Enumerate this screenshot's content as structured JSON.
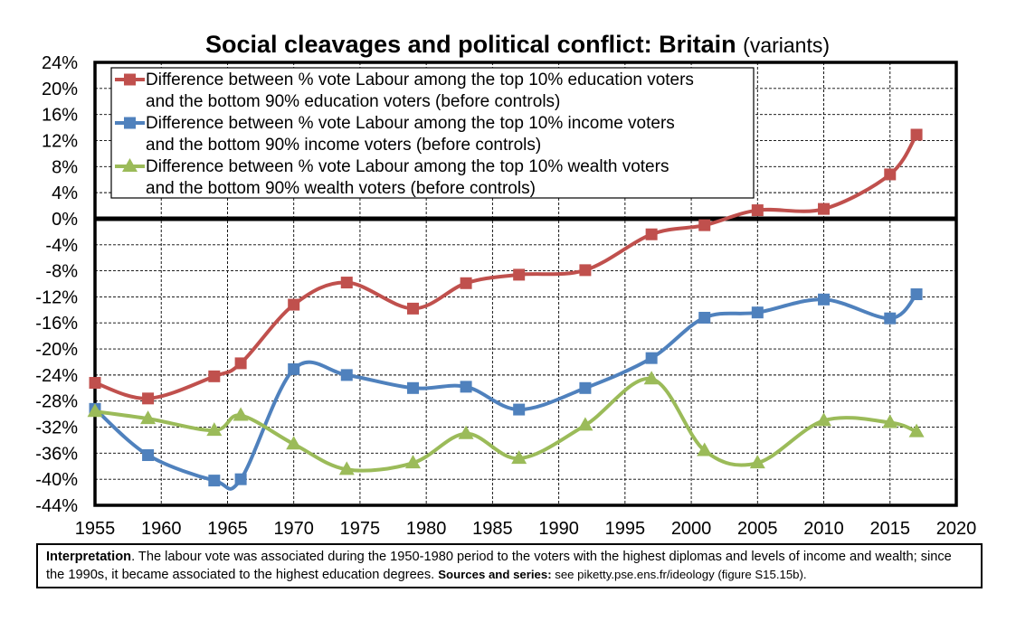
{
  "chart_data": {
    "type": "line",
    "title": "Social cleavages and political conflict: Britain",
    "subtitle": "(variants)",
    "x_ticks": [
      "1955",
      "1960",
      "1965",
      "1970",
      "1975",
      "1980",
      "1985",
      "1990",
      "1995",
      "2000",
      "2005",
      "2010",
      "2015",
      "2020"
    ],
    "y_ticks": [
      "24%",
      "20%",
      "16%",
      "12%",
      "8%",
      "4%",
      "0%",
      "-4%",
      "-8%",
      "-12%",
      "-16%",
      "-20%",
      "-24%",
      "-28%",
      "-32%",
      "-36%",
      "-40%",
      "-44%"
    ],
    "xlim": [
      1955,
      2020
    ],
    "ylim": [
      -44,
      24
    ],
    "grid": true,
    "legend_position": "top-left",
    "series": [
      {
        "name_line1": "Difference between % vote Labour among the top 10% education voters",
        "name_line2": "and the bottom 90% education voters (before controls)",
        "color": "#c0504d",
        "marker": "square",
        "x": [
          1955,
          1959,
          1964,
          1966,
          1970,
          1974,
          1979,
          1983,
          1987,
          1992,
          1997,
          2001,
          2005,
          2010,
          2015,
          2017
        ],
        "y": [
          -25.2,
          -27.6,
          -24.2,
          -22.2,
          -13.2,
          -9.8,
          -13.8,
          -9.9,
          -8.6,
          -7.9,
          -2.4,
          -1.0,
          1.3,
          1.5,
          6.8,
          12.9
        ]
      },
      {
        "name_line1": "Difference between % vote Labour among the top 10% income voters",
        "name_line2": "and the bottom 90% income voters (before controls)",
        "color": "#4f81bd",
        "marker": "square",
        "x": [
          1955,
          1959,
          1964,
          1966,
          1970,
          1974,
          1979,
          1983,
          1987,
          1992,
          1997,
          2001,
          2005,
          2010,
          2015,
          2017
        ],
        "y": [
          -29.2,
          -36.3,
          -40.2,
          -40.0,
          -23.1,
          -24.0,
          -26.0,
          -25.8,
          -29.3,
          -26.0,
          -21.4,
          -15.2,
          -14.4,
          -12.4,
          -15.3,
          -11.6
        ]
      },
      {
        "name_line1": "Difference between % vote Labour among the top 10% wealth voters",
        "name_line2": "and the bottom 90% wealth voters (before controls)",
        "color": "#9bbb59",
        "marker": "triangle",
        "x": [
          1955,
          1959,
          1964,
          1966,
          1970,
          1974,
          1979,
          1983,
          1987,
          1992,
          1997,
          2001,
          2005,
          2010,
          2015,
          2017
        ],
        "y": [
          -29.6,
          -30.7,
          -32.5,
          -30.2,
          -34.6,
          -38.5,
          -37.5,
          -33.0,
          -36.8,
          -31.7,
          -24.6,
          -35.6,
          -37.5,
          -31.0,
          -31.3,
          -32.7
        ]
      }
    ]
  },
  "note": {
    "label": "Interpretation",
    "text": ". The labour vote was associated during the 1950-1980 period to the voters with the highest diplomas and levels of income and wealth; since the 1990s, it became associated to the highest education degrees. ",
    "sources_label": "Sources and series:",
    "sources_text": " see piketty.pse.ens.fr/ideology (figure S15.15b)."
  }
}
